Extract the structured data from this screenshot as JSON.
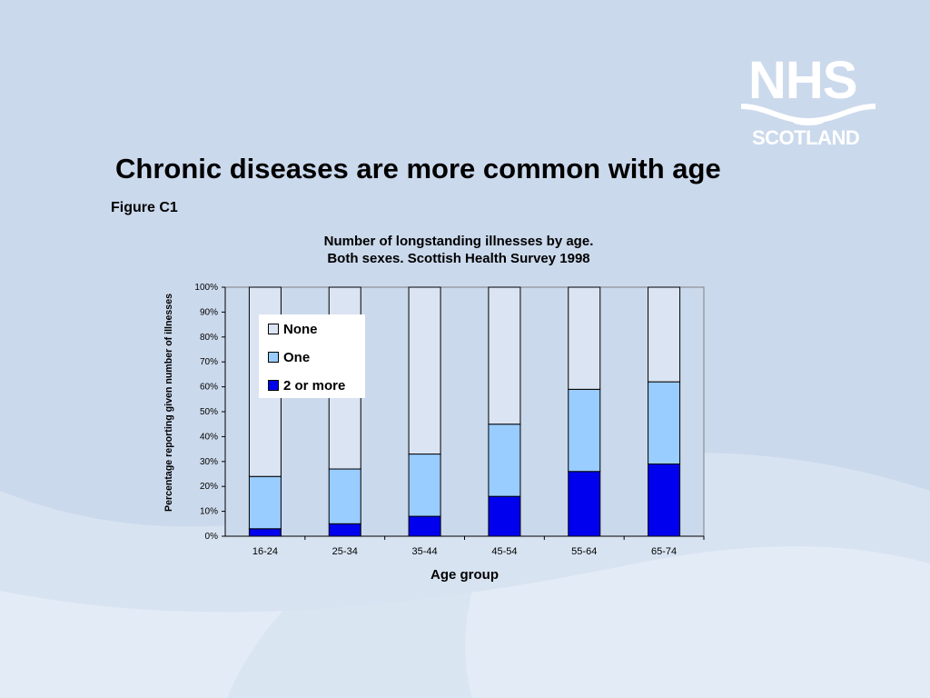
{
  "slide": {
    "title": "Chronic diseases are more common with age",
    "figure_label": "Figure C1"
  },
  "logo": {
    "line1": "NHS",
    "line2": "SCOTLAND"
  },
  "colors": {
    "none": "#dbe4f2",
    "one": "#99ccff",
    "two_or_more": "#0000ee",
    "plot_bg": "#cbd9ec",
    "background": "#cbd9ec"
  },
  "chart_data": {
    "type": "bar",
    "stacked": true,
    "title": "Number of longstanding illnesses by age.",
    "subtitle": "Both sexes.   Scottish Health Survey   1998",
    "xlabel": "Age group",
    "ylabel": "Percentage reporting given number of illnesses",
    "ylim": [
      0,
      100
    ],
    "yticks": [
      "0%",
      "10%",
      "20%",
      "30%",
      "40%",
      "50%",
      "60%",
      "70%",
      "80%",
      "90%",
      "100%"
    ],
    "categories": [
      "16-24",
      "25-34",
      "35-44",
      "45-54",
      "55-64",
      "65-74"
    ],
    "series": [
      {
        "name": "2 or more",
        "values": [
          3,
          5,
          8,
          16,
          26,
          29
        ]
      },
      {
        "name": "One",
        "values": [
          21,
          22,
          25,
          29,
          33,
          33
        ]
      },
      {
        "name": "None",
        "values": [
          76,
          73,
          67,
          55,
          41,
          38
        ]
      }
    ],
    "legend": [
      "None",
      "One",
      "2 or more"
    ],
    "legend_position": "top-left",
    "grid": false
  }
}
